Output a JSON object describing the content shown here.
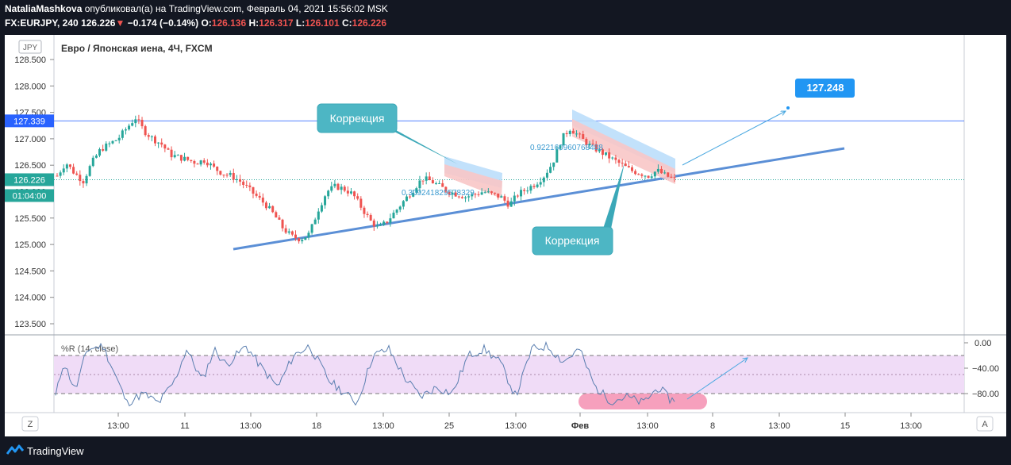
{
  "header": {
    "author": "NataliaMashkova",
    "published": "опубликовал(а) на TradingView.com, Февраль 04, 2021 15:56:02 MSK",
    "symbol": "FX:EURJPY, 240",
    "price": "126.226",
    "change": "−0.174 (−0.14%)",
    "o_label": "O:",
    "o_val": "126.136",
    "h_label": "H:",
    "h_val": "126.317",
    "l_label": "L:",
    "l_val": "126.101",
    "c_label": "C:",
    "c_val": "126.226"
  },
  "chart_title": "Евро / Японская иена, 4Ч, FXCM",
  "currency_badge": "JPY",
  "price_axis": {
    "ticks": [
      "128.500",
      "128.000",
      "127.500",
      "127.000",
      "126.500",
      "126.000",
      "125.500",
      "125.000",
      "124.500",
      "124.000",
      "123.500"
    ],
    "level_label": "127.339",
    "last_price_label": "126.226",
    "countdown_label": "01:04:00"
  },
  "time_axis": {
    "ticks": [
      "13:00",
      "11",
      "13:00",
      "18",
      "13:00",
      "25",
      "13:00",
      "Фев",
      "13:00",
      "8",
      "13:00",
      "15",
      "13:00"
    ]
  },
  "annotations": {
    "correction_top": "Коррекция",
    "correction_bottom": "Коррекция",
    "target_label": "127.248",
    "channel1_label": "0.309241829578329",
    "channel2_label": "0.922160960768488"
  },
  "indicator": {
    "title": "%R (14, close)",
    "ticks": [
      "0.00",
      "−40.00",
      "−80.00"
    ]
  },
  "bottom_buttons": {
    "left": "Z",
    "right": "A"
  },
  "brand": "TradingView",
  "colors": {
    "up": "#26a69a",
    "down": "#ef5350",
    "trend": "#5b8fd6",
    "callout": "#4db6c4",
    "target": "#2196f3",
    "wr_band": "#f0dcf7",
    "wr_line": "#5b7fb0",
    "highlight": "#f48fb1"
  },
  "chart_data": {
    "type": "candlestick",
    "title": "Евро / Японская иена, 4Ч, FXCM",
    "ylim": [
      123.3,
      128.55
    ],
    "y_ticks": [
      123.5,
      124,
      124.5,
      125,
      125.5,
      126,
      126.5,
      127,
      127.5,
      128,
      128.5
    ],
    "price_path": [
      126.3,
      126.55,
      126.35,
      126.2,
      126.55,
      126.8,
      126.9,
      127.0,
      127.2,
      127.4,
      127.15,
      127.0,
      126.9,
      126.7,
      126.65,
      126.6,
      126.55,
      126.6,
      126.45,
      126.35,
      126.3,
      126.2,
      126.05,
      125.9,
      125.75,
      125.55,
      125.3,
      125.15,
      125.1,
      125.2,
      125.65,
      126.0,
      126.1,
      126.05,
      125.95,
      125.7,
      125.45,
      125.3,
      125.45,
      125.65,
      125.85,
      126.05,
      126.25,
      126.2,
      126.1,
      126.0,
      125.95,
      125.9,
      125.95,
      126.0,
      125.95,
      125.9,
      125.75,
      125.95,
      126.05,
      126.15,
      126.3,
      126.55,
      127.0,
      127.2,
      127.05,
      126.9,
      126.8,
      126.7,
      126.6,
      126.5,
      126.4,
      126.35,
      126.3,
      126.4,
      126.3,
      126.23
    ],
    "trendline": [
      [
        125.0,
        124.8
      ],
      [
        1064,
        126.55
      ]
    ],
    "horizontal_level": 127.339,
    "last_price": 126.226,
    "target": 127.248,
    "williams_r": {
      "name": "%R (14, close)",
      "levels": [
        0,
        -20,
        -50,
        -80,
        -100
      ],
      "range": [
        -100,
        10
      ]
    }
  }
}
